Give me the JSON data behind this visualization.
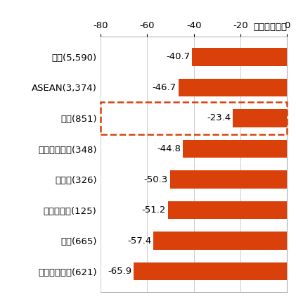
{
  "categories": [
    "インドネシア(621)",
    "タイ(665)",
    "フィリピン(125)",
    "インド(326)",
    "香港・マカオ(348)",
    "中国(851)",
    "ASEAN(3,374)",
    "総数(5,590)"
  ],
  "values": [
    -65.9,
    -57.4,
    -51.2,
    -50.3,
    -44.8,
    -23.4,
    -46.7,
    -40.7
  ],
  "bar_color": "#D9400A",
  "background_color": "#ffffff",
  "unit_label": "（ポイント）",
  "xlim": [
    -80,
    0
  ],
  "xticks": [
    -80,
    -60,
    -40,
    -20,
    0
  ],
  "bar_labels": [
    "-65.9",
    "-57.4",
    "-51.2",
    "-50.3",
    "-44.8",
    "-23.4",
    "-46.7",
    "-40.7"
  ],
  "highlight_index": 5,
  "highlight_box_color": "#D9400A",
  "grid_color": "#bbbbbb",
  "font_size_labels": 9.5,
  "font_size_values": 9.5,
  "font_size_unit": 9.5,
  "bar_height": 0.58
}
